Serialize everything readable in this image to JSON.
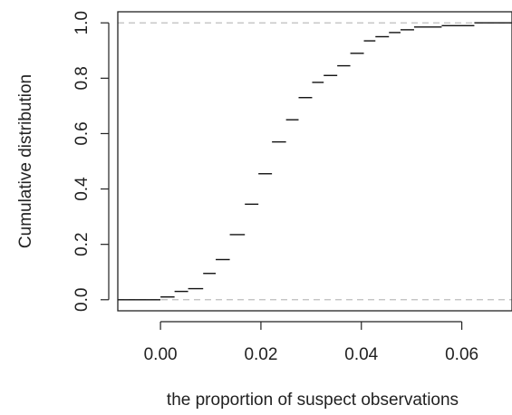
{
  "chart_data": {
    "type": "step",
    "title": "",
    "xlabel": "the proportion of suspect observations",
    "ylabel": "Cumulative distribution",
    "xlim": [
      -0.0085,
      0.07
    ],
    "ylim": [
      -0.04,
      1.04
    ],
    "x_ticks": [
      0.0,
      0.02,
      0.04,
      0.06
    ],
    "x_tick_labels": [
      "0.00",
      "0.02",
      "0.04",
      "0.06"
    ],
    "y_ticks": [
      0.0,
      0.2,
      0.4,
      0.6,
      0.8,
      1.0
    ],
    "y_tick_labels": [
      "0.0",
      "0.2",
      "0.4",
      "0.6",
      "0.8",
      "1.0"
    ],
    "reference_lines_y": [
      0.0,
      1.0
    ],
    "grid": false,
    "series": [
      {
        "x": [
          -0.02,
          0.0,
          0.0028,
          0.0055,
          0.0085,
          0.011,
          0.0138,
          0.0168,
          0.0195,
          0.0222,
          0.025,
          0.0275,
          0.0302,
          0.0325,
          0.0352,
          0.0378,
          0.0405,
          0.0428,
          0.0455,
          0.0478,
          0.0505,
          0.056,
          0.0625
        ],
        "y": [
          0.0,
          0.01,
          0.03,
          0.04,
          0.095,
          0.145,
          0.235,
          0.345,
          0.455,
          0.57,
          0.65,
          0.73,
          0.785,
          0.81,
          0.845,
          0.89,
          0.935,
          0.95,
          0.965,
          0.975,
          0.985,
          0.99,
          1.0
        ]
      }
    ]
  }
}
